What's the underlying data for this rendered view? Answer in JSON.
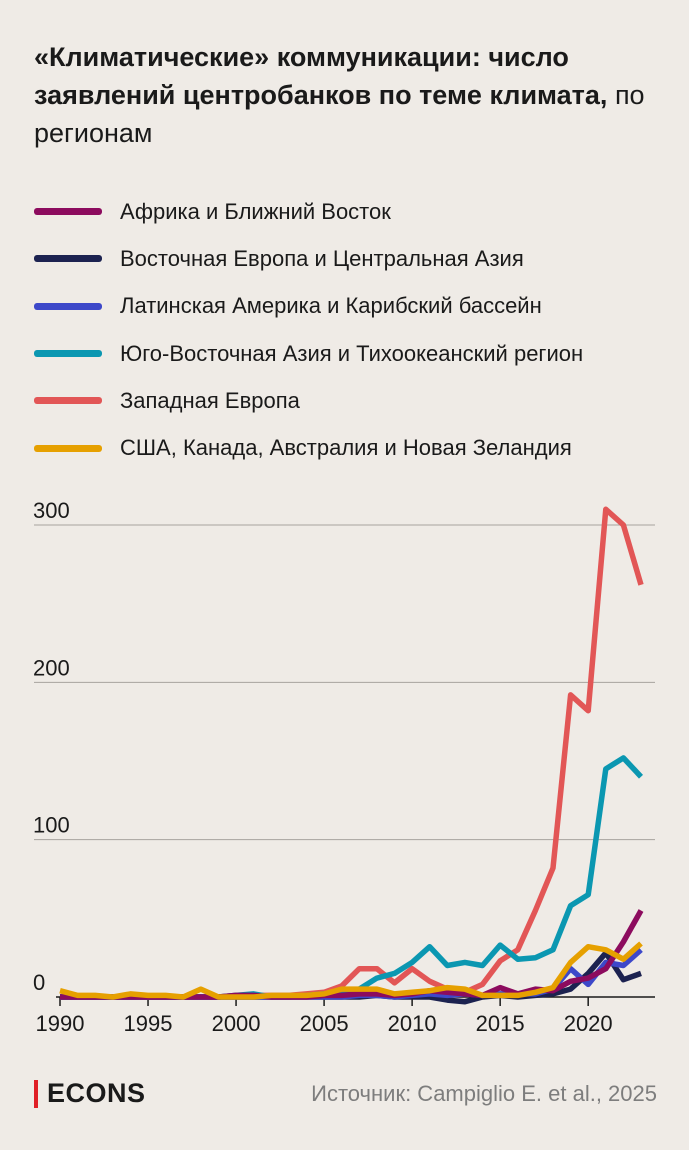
{
  "title": {
    "bold": "«Климатические» коммуникации: число заявлений центробанков по теме климата,",
    "light": "по регионам"
  },
  "footer": {
    "brand": "ECONS",
    "brand_color": "#e01f26",
    "source": "Источник: Campiglio E. et al., 2025"
  },
  "chart_data": {
    "type": "line",
    "title": "«Климатические» коммуникации: число заявлений центробанков по теме климата, по регионам",
    "xlabel": "",
    "ylabel": "",
    "ylim": [
      0,
      300
    ],
    "xlim": [
      1990,
      2023
    ],
    "yticks": [
      0,
      100,
      200,
      300
    ],
    "xticks": [
      1990,
      1995,
      2000,
      2005,
      2010,
      2015,
      2020
    ],
    "grid": true,
    "legend_position": "top",
    "x": [
      1990,
      1991,
      1992,
      1993,
      1994,
      1995,
      1996,
      1997,
      1998,
      1999,
      2000,
      2001,
      2002,
      2003,
      2004,
      2005,
      2006,
      2007,
      2008,
      2009,
      2010,
      2011,
      2012,
      2013,
      2014,
      2015,
      2016,
      2017,
      2018,
      2019,
      2020,
      2021,
      2022,
      2023
    ],
    "series": [
      {
        "name": "Африка и Ближний Восток",
        "color": "#8c0b5e",
        "values": [
          0,
          0,
          0,
          0,
          0,
          0,
          0,
          0,
          0,
          0,
          1,
          1,
          0,
          0,
          0,
          1,
          1,
          2,
          2,
          1,
          2,
          4,
          3,
          2,
          1,
          6,
          2,
          5,
          4,
          10,
          12,
          18,
          35,
          55
        ]
      },
      {
        "name": "Восточная Европа и Центральная Азия",
        "color": "#1c2250",
        "values": [
          0,
          0,
          0,
          0,
          0,
          0,
          0,
          0,
          0,
          0,
          0,
          0,
          0,
          0,
          0,
          0,
          0,
          0,
          1,
          0,
          0,
          0,
          -2,
          -3,
          0,
          1,
          0,
          1,
          2,
          5,
          15,
          28,
          11,
          15
        ]
      },
      {
        "name": "Латинская Америка и Карибский бассейн",
        "color": "#3d48c9",
        "values": [
          0,
          0,
          0,
          0,
          0,
          0,
          0,
          0,
          0,
          0,
          0,
          0,
          0,
          0,
          0,
          0,
          0,
          1,
          1,
          0,
          1,
          2,
          1,
          2,
          1,
          2,
          2,
          2,
          5,
          18,
          8,
          22,
          20,
          30
        ]
      },
      {
        "name": "Юго-Восточная Азия и Тихоокеанский регион",
        "color": "#0b97b1",
        "values": [
          0,
          0,
          0,
          0,
          0,
          0,
          0,
          0,
          0,
          0,
          1,
          2,
          0,
          0,
          1,
          2,
          3,
          5,
          12,
          15,
          22,
          32,
          20,
          22,
          20,
          33,
          24,
          25,
          30,
          58,
          65,
          145,
          152,
          140
        ]
      },
      {
        "name": "Западная Европа",
        "color": "#e25656",
        "values": [
          0,
          0,
          0,
          0,
          0,
          0,
          0,
          0,
          0,
          0,
          1,
          1,
          1,
          1,
          2,
          3,
          7,
          18,
          18,
          9,
          18,
          10,
          5,
          3,
          8,
          23,
          30,
          55,
          82,
          192,
          182,
          310,
          300,
          262
        ]
      },
      {
        "name": "США, Канада, Австралия и Новая Зеландия",
        "color": "#e6a000",
        "values": [
          4,
          1,
          1,
          0,
          2,
          1,
          1,
          0,
          5,
          0,
          0,
          0,
          1,
          1,
          1,
          2,
          5,
          5,
          5,
          2,
          3,
          4,
          6,
          5,
          1,
          1,
          1,
          3,
          6,
          22,
          32,
          30,
          24,
          34
        ]
      }
    ]
  }
}
